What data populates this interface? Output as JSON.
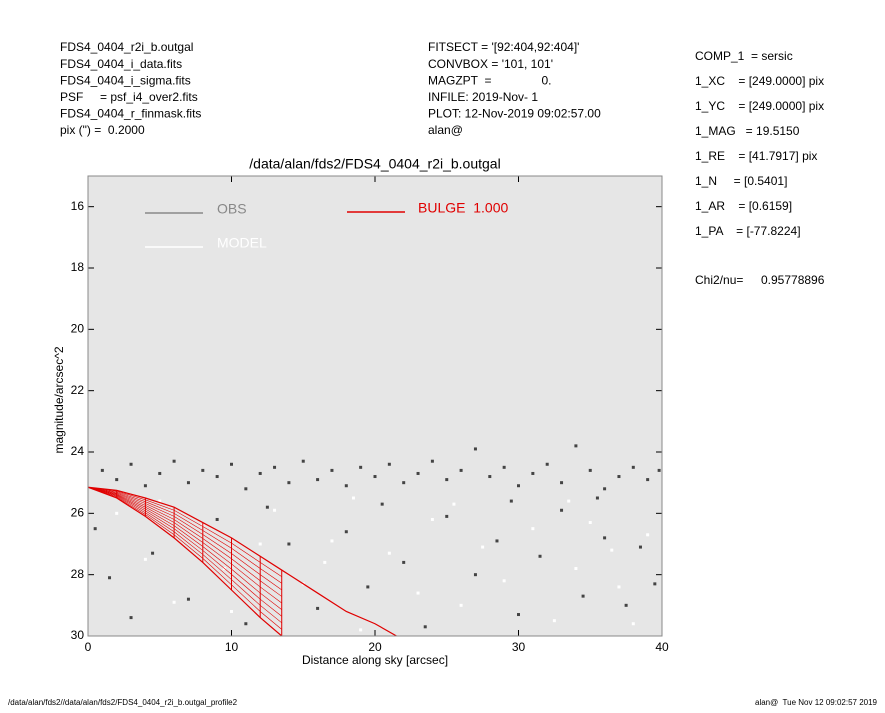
{
  "header": {
    "left": [
      "FDS4_0404_r2i_b.outgal",
      "FDS4_0404_i_data.fits",
      "FDS4_0404_i_sigma.fits",
      "PSF     = psf_i4_over2.fits",
      "FDS4_0404_r_finmask.fits",
      "pix (\") =  0.2000"
    ],
    "middle": [
      "FITSECT = '[92:404,92:404]'",
      "CONVBOX = '101, 101'",
      "MAGZPT  =               0.",
      "INFILE: 2019-Nov- 1",
      "PLOT: 12-Nov-2019 09:02:57.00",
      "alan@"
    ]
  },
  "params": [
    "COMP_1  = sersic",
    "1_XC    = [249.0000] pix",
    "1_YC    = [249.0000] pix",
    "1_MAG   = 19.5150",
    "1_RE    = [41.7917] pix",
    "1_N     = [0.5401]",
    "1_AR    = [0.6159]",
    "1_PA    = [-77.8224]"
  ],
  "chi2": {
    "label": "Chi2/nu=",
    "value": "0.95778896"
  },
  "footer": {
    "left": "/data/alan/fds2//data/alan/fds2/FDS4_0404_r2i_b.outgal_profile2",
    "right": "alan@  Tue Nov 12 09:02:57 2019"
  },
  "chart_data": {
    "type": "scatter",
    "title": "/data/alan/fds2/FDS4_0404_r2i_b.outgal",
    "x_label": "Distance along sky [arcsec]",
    "y_label": "magnitude/arcsec^2",
    "xlim": [
      0,
      40
    ],
    "xticks": [
      0,
      10,
      20,
      30,
      40
    ],
    "ylim": [
      30,
      15
    ],
    "yticks": [
      16,
      18,
      20,
      22,
      24,
      26,
      28,
      30
    ],
    "background": "#e6e6e6",
    "series": [
      {
        "name": "OBS",
        "color": "#444444",
        "legend_color": "#888888",
        "x": [
          1,
          2,
          3,
          4,
          5,
          6,
          7,
          8,
          9,
          10,
          11,
          12,
          13,
          14,
          15,
          16,
          17,
          18,
          19,
          20,
          21,
          22,
          23,
          24,
          25,
          26,
          27,
          28,
          29,
          30,
          31,
          32,
          33,
          34,
          35,
          36,
          37,
          38,
          39,
          39.8,
          0.5,
          1.5,
          3,
          4.5,
          7,
          9,
          11,
          14,
          16,
          18,
          19.5,
          22,
          23.5,
          25,
          27,
          28.5,
          30,
          31.5,
          33,
          34.5,
          36,
          37.5,
          38.5,
          39.5,
          12.5,
          20.5,
          29.5,
          35.5
        ],
        "values": [
          24.6,
          24.9,
          24.4,
          25.1,
          24.7,
          24.3,
          25.0,
          24.6,
          24.8,
          24.4,
          25.2,
          24.7,
          24.5,
          25.0,
          24.3,
          24.9,
          24.6,
          25.1,
          24.5,
          24.8,
          24.4,
          25.0,
          24.7,
          24.3,
          24.9,
          24.6,
          23.9,
          24.8,
          24.5,
          25.1,
          24.7,
          24.4,
          25.0,
          23.8,
          24.6,
          25.2,
          24.8,
          24.5,
          24.9,
          24.6,
          26.5,
          28.1,
          29.4,
          27.3,
          28.8,
          26.2,
          29.6,
          27.0,
          29.1,
          26.6,
          28.4,
          27.6,
          29.7,
          26.1,
          28.0,
          26.9,
          29.3,
          27.4,
          25.9,
          28.7,
          26.8,
          29.0,
          27.1,
          28.3,
          25.8,
          25.7,
          25.6,
          25.5
        ]
      },
      {
        "name": "MODEL",
        "color": "#ffffff",
        "legend_color": "#ffffff",
        "x": [
          2,
          4,
          6,
          8,
          10,
          12,
          15,
          17,
          19,
          21,
          23,
          24,
          26,
          27.5,
          29,
          31,
          32.5,
          34,
          35,
          37,
          38,
          39,
          5,
          13,
          18.5,
          25.5,
          33.5,
          36.5,
          9.5,
          16.5
        ],
        "values": [
          26.0,
          27.5,
          28.9,
          26.4,
          29.2,
          27.0,
          28.3,
          26.9,
          29.8,
          27.3,
          28.6,
          26.2,
          29.0,
          27.1,
          28.2,
          26.5,
          29.5,
          27.8,
          26.3,
          28.4,
          29.6,
          26.7,
          25.6,
          25.9,
          25.5,
          25.7,
          25.6,
          27.2,
          27.8,
          27.6
        ]
      },
      {
        "name": "BULGE  1.000",
        "color": "#e00000",
        "legend_color": "#e00000",
        "x": [
          0,
          2,
          4,
          6,
          8,
          10,
          12,
          13.5,
          14,
          16,
          18,
          20,
          21.5
        ],
        "values": [
          25.15,
          25.5,
          26.1,
          26.8,
          27.6,
          28.5,
          29.4,
          30,
          null,
          null,
          null,
          null,
          null
        ],
        "values_outer": [
          25.15,
          25.25,
          25.5,
          25.8,
          26.3,
          26.8,
          27.4,
          27.85,
          28.0,
          28.6,
          29.2,
          29.6,
          30
        ]
      }
    ]
  }
}
